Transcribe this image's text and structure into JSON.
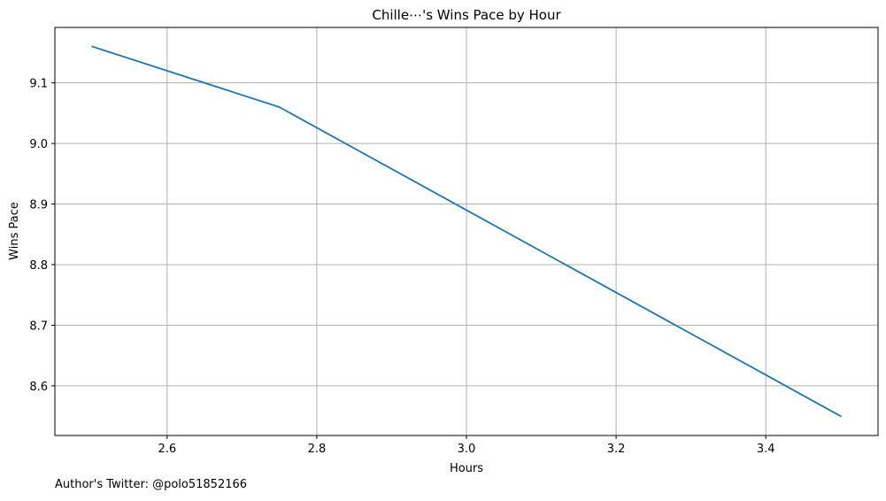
{
  "chart_data": {
    "type": "line",
    "title": "Chille⋯'s Wins Pace by Hour",
    "xlabel": "Hours",
    "ylabel": "Wins Pace",
    "xlim": [
      2.45,
      3.55
    ],
    "ylim": [
      8.518,
      9.1915
    ],
    "xticks": [
      2.6,
      2.8,
      3.0,
      3.2,
      3.4
    ],
    "xtick_labels": [
      "2.6",
      "2.8",
      "3.0",
      "3.2",
      "3.4"
    ],
    "yticks": [
      8.6,
      8.7,
      8.8,
      8.9,
      9.0,
      9.1
    ],
    "ytick_labels": [
      "8.6",
      "8.7",
      "8.8",
      "8.9",
      "9.0",
      "9.1"
    ],
    "grid": true,
    "series": [
      {
        "color": "#1f77b4",
        "x": [
          2.5,
          2.75,
          3.5
        ],
        "y": [
          9.16,
          9.06,
          8.55
        ]
      }
    ]
  },
  "footer": {
    "credit": "Author's Twitter: @polo51852166"
  }
}
